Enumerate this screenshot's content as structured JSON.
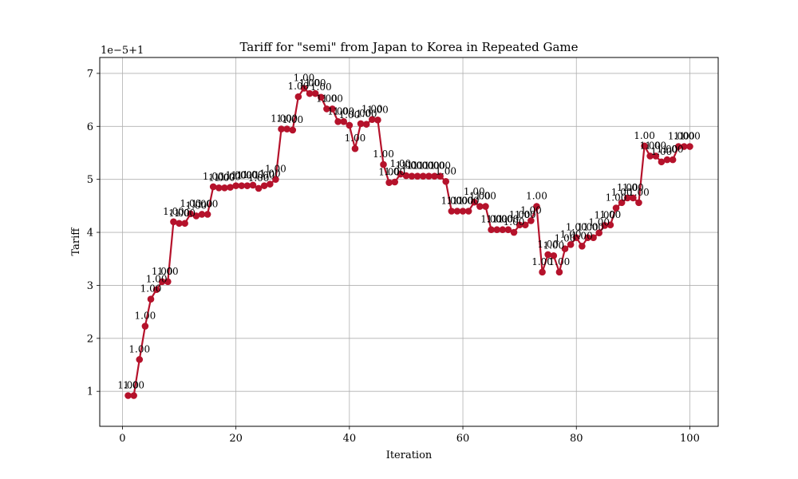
{
  "chart_data": {
    "type": "line",
    "title": "Tariff for \"semi\" from Japan to Korea in Repeated Game",
    "xlabel": "Iteration",
    "ylabel": "Tariff",
    "offset_text": "1e−5+1",
    "xlim": [
      -4,
      105
    ],
    "ylim": [
      0.34,
      7.3
    ],
    "xticks": [
      0,
      20,
      40,
      60,
      80,
      100
    ],
    "yticks": [
      1,
      2,
      3,
      4,
      5,
      6,
      7
    ],
    "grid": true,
    "series_color": "#b5122b",
    "point_label": "1.00",
    "series": [
      {
        "x": [
          1,
          2,
          3,
          4,
          5,
          6,
          7,
          8,
          9,
          10,
          11,
          12,
          13,
          14,
          15,
          16,
          17,
          18,
          19,
          20,
          21,
          22,
          23,
          24,
          25,
          26,
          27,
          28,
          29,
          30,
          31,
          32,
          33,
          34,
          35,
          36,
          37,
          38,
          39,
          40,
          41,
          42,
          43,
          44,
          45,
          46,
          47,
          48,
          49,
          50,
          51,
          52,
          53,
          54,
          55,
          56,
          57,
          58,
          59,
          60,
          61,
          62,
          63,
          64,
          65,
          66,
          67,
          68,
          69,
          70,
          71,
          72,
          73,
          74,
          75,
          76,
          77,
          78,
          79,
          80,
          81,
          82,
          83,
          84,
          85,
          86,
          87,
          88,
          89,
          90,
          91,
          92,
          93,
          94,
          95,
          96,
          97,
          98,
          99,
          100
        ],
        "values": [
          0.92,
          0.92,
          1.6,
          2.23,
          2.74,
          2.92,
          3.07,
          3.07,
          4.2,
          4.17,
          4.17,
          4.35,
          4.31,
          4.34,
          4.34,
          4.86,
          4.84,
          4.84,
          4.85,
          4.88,
          4.88,
          4.88,
          4.89,
          4.83,
          4.88,
          4.91,
          5.0,
          5.95,
          5.95,
          5.93,
          6.56,
          6.72,
          6.62,
          6.62,
          6.55,
          6.33,
          6.33,
          6.09,
          6.09,
          6.02,
          5.58,
          6.05,
          6.04,
          6.13,
          6.12,
          5.28,
          4.94,
          4.95,
          5.1,
          5.07,
          5.06,
          5.06,
          5.06,
          5.06,
          5.06,
          5.06,
          4.96,
          4.4,
          4.4,
          4.4,
          4.4,
          4.57,
          4.49,
          4.49,
          4.05,
          4.05,
          4.05,
          4.05,
          4.0,
          4.14,
          4.14,
          4.22,
          4.49,
          3.25,
          3.58,
          3.56,
          3.25,
          3.69,
          3.77,
          3.9,
          3.74,
          3.9,
          3.9,
          3.99,
          4.13,
          4.14,
          4.46,
          4.56,
          4.65,
          4.65,
          4.56,
          5.63,
          5.44,
          5.44,
          5.33,
          5.37,
          5.37,
          5.62,
          5.62,
          5.62
        ]
      }
    ]
  }
}
